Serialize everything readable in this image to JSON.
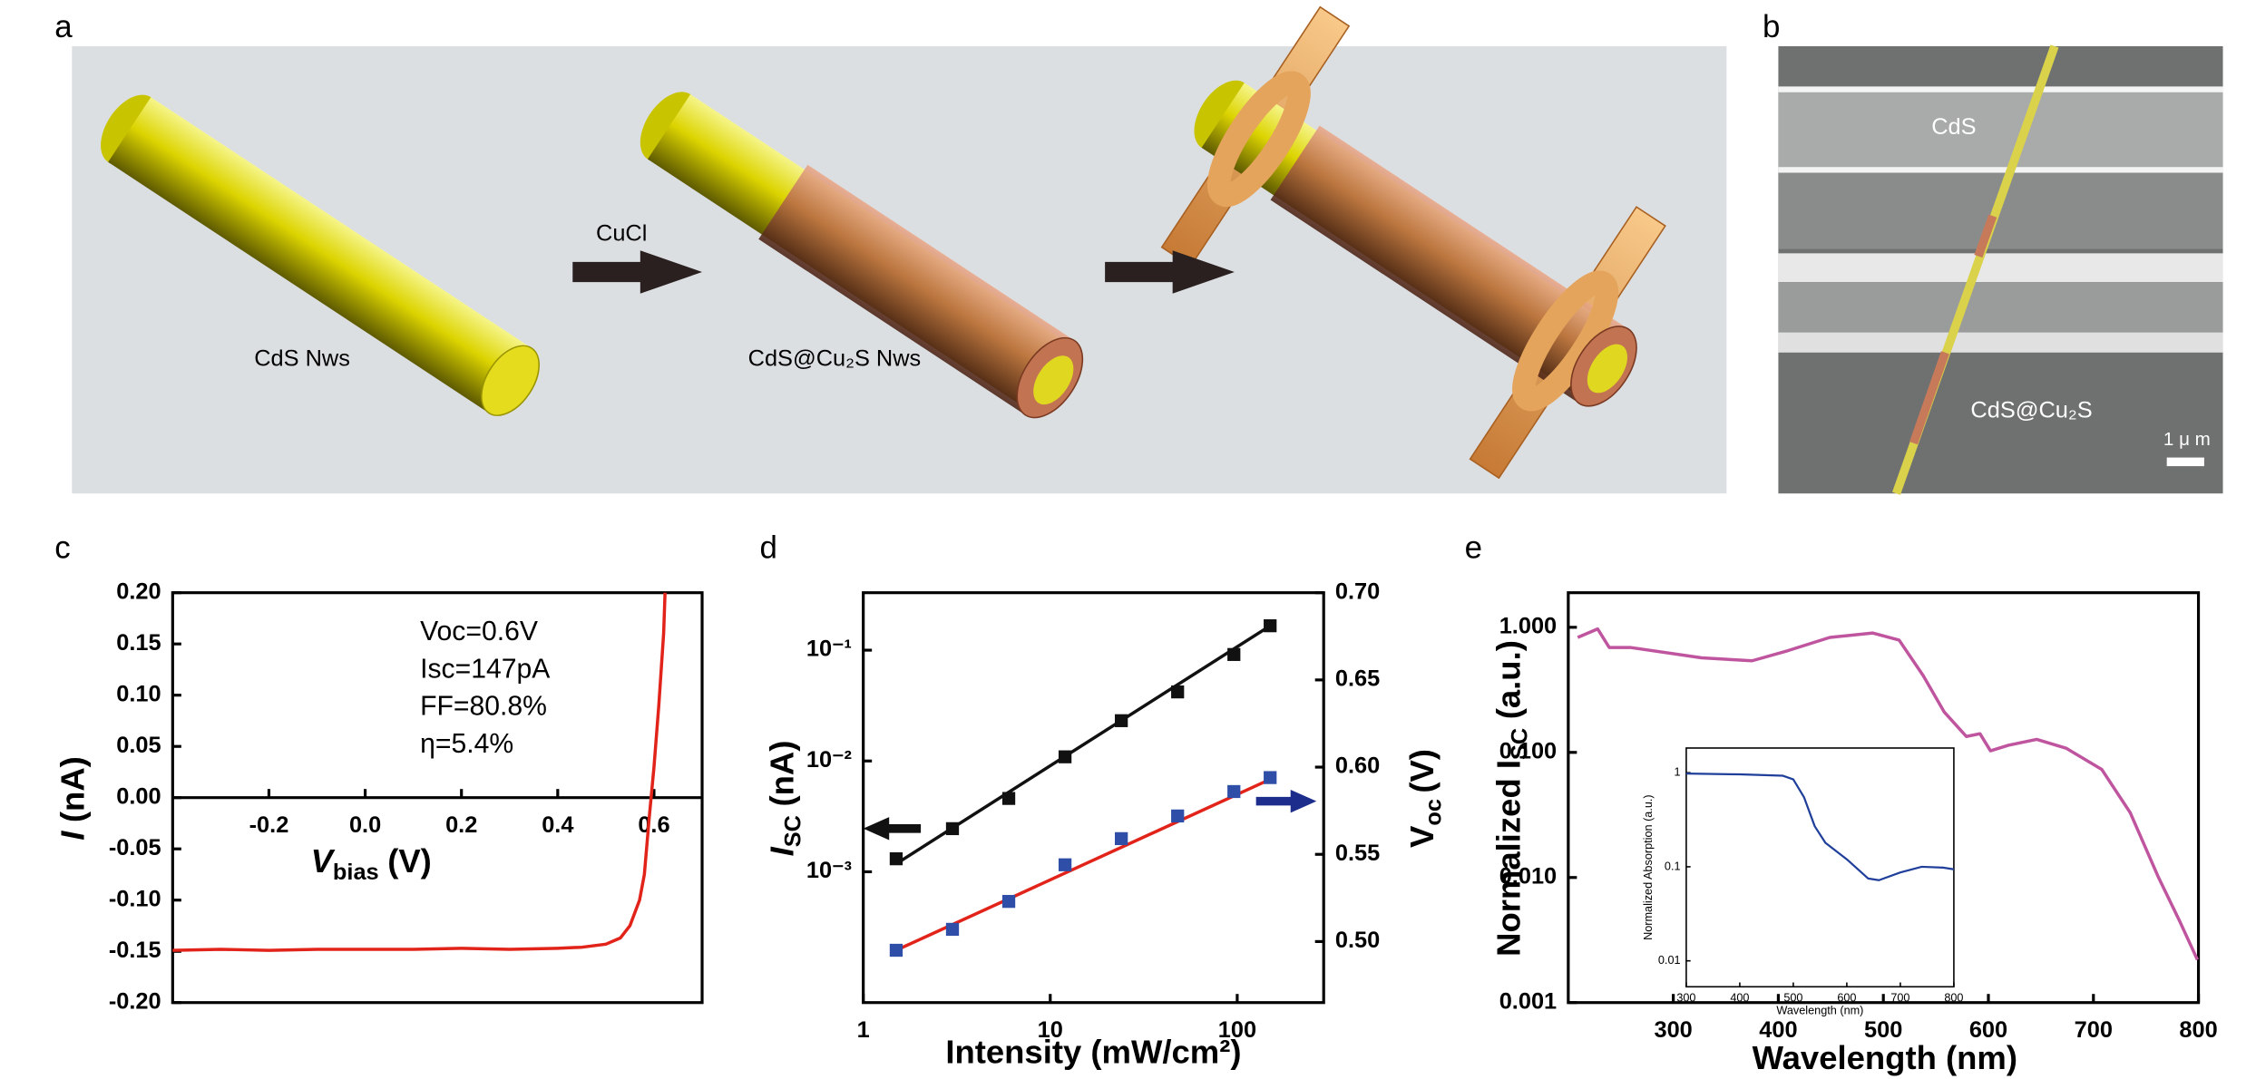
{
  "panel_labels": [
    "a",
    "b",
    "c",
    "d",
    "e"
  ],
  "figure_a": {
    "rod_labels": [
      "CdS Nws",
      "CdS@Cu₂S Nws"
    ],
    "arrow_label": "CuCl"
  },
  "figure_b": {
    "labels": [
      "CdS",
      "CdS@Cu₂S"
    ],
    "scale_bar": "1 μ m"
  },
  "chart_data": [
    {
      "type": "line",
      "ylabel": "I",
      "ylabel_unit": "(nA)",
      "xlabel": "V",
      "xlabel_sub": "bias",
      "xlabel_unit": "(V)",
      "annotations": [
        "Voc=0.6V",
        "Isc=147pA",
        "FF=80.8%",
        "η=5.4%"
      ],
      "x": [
        -0.4,
        -0.3,
        -0.2,
        -0.1,
        0,
        0.1,
        0.2,
        0.3,
        0.4,
        0.45,
        0.5,
        0.53,
        0.55,
        0.57,
        0.58,
        0.59,
        0.6,
        0.61,
        0.62,
        0.623
      ],
      "series": [
        {
          "color": "#e2231a",
          "values": [
            -0.149,
            -0.148,
            -0.149,
            -0.148,
            -0.148,
            -0.148,
            -0.147,
            -0.148,
            -0.147,
            -0.146,
            -0.143,
            -0.137,
            -0.125,
            -0.1,
            -0.075,
            -0.02,
            0.03,
            0.09,
            0.16,
            0.2
          ]
        }
      ],
      "xlim": [
        -0.4,
        0.7
      ],
      "xticks": [
        -0.2,
        {
          "value": 0,
          "label": "0.0"
        },
        0.2,
        0.4,
        0.6
      ],
      "ylim": [
        -0.2,
        0.2
      ],
      "yticks": [
        {
          "value": 0.2,
          "label": "0.20"
        },
        {
          "value": 0.15,
          "label": "0.15"
        },
        {
          "value": 0.1,
          "label": "0.10"
        },
        {
          "value": 0.05,
          "label": "0.05"
        },
        {
          "value": 0,
          "label": "0.00"
        },
        {
          "value": -0.05,
          "label": "-0.05"
        },
        {
          "value": -0.1,
          "label": "-0.10"
        },
        {
          "value": -0.15,
          "label": "-0.15"
        },
        {
          "value": -0.2,
          "label": "-0.20"
        }
      ]
    },
    {
      "type": "scatter",
      "xlabel": "Intensity (mW/cm²)",
      "ylabel": "I",
      "ylabel_sub": "SC",
      "ylabel_unit": "(nA)",
      "y2label": "V",
      "y2label_sub": "oc",
      "y2label_unit": "(V)",
      "xscale": "log",
      "yscale": "log",
      "x": [
        1.5,
        3,
        6,
        12,
        24,
        48,
        96,
        150
      ],
      "series": [
        {
          "color": "#111111",
          "values": [
            0.00131,
            0.00245,
            0.00459,
            0.0109,
            0.0231,
            0.042,
            0.0914,
            0.166
          ]
        },
        {
          "color": "#2f4ea8",
          "axis": "y2",
          "values": [
            0.495,
            0.507,
            0.523,
            0.544,
            0.559,
            0.572,
            0.586,
            0.594
          ]
        }
      ],
      "fits": [
        {
          "color": "#111111",
          "x": [
            1.5,
            150
          ],
          "values": [
            0.00118,
            0.166
          ]
        },
        {
          "color": "#e2231a",
          "axis": "y2",
          "x": [
            1.5,
            150
          ],
          "values": [
            0.495,
            0.593
          ]
        }
      ],
      "xlim": [
        1,
        290
      ],
      "xticks": [
        1,
        10,
        100
      ],
      "ylim": [
        6.6e-05,
        0.33
      ],
      "yticks": [
        {
          "value": 0.001,
          "label": "10⁻³"
        },
        {
          "value": 0.01,
          "label": "10⁻²"
        },
        {
          "value": 0.1,
          "label": "10⁻¹"
        }
      ],
      "y2lim": [
        0.465,
        0.7
      ],
      "y2ticks": [
        {
          "value": 0.5,
          "label": "0.50"
        },
        {
          "value": 0.55,
          "label": "0.55"
        },
        {
          "value": 0.6,
          "label": "0.60"
        },
        {
          "value": 0.65,
          "label": "0.65"
        },
        {
          "value": 0.7,
          "label": "0.70"
        }
      ]
    },
    {
      "type": "line",
      "xlabel": "Wavelength (nm)",
      "ylabel": "Normalized I",
      "ylabel_sub": "SC",
      "ylabel_unit": "(a.u.)",
      "yscale": "log",
      "x": [
        209,
        228,
        239,
        259,
        327,
        375,
        409,
        449,
        490,
        515,
        538,
        558,
        579,
        592,
        602,
        619,
        646,
        674,
        708,
        735,
        762,
        782,
        799
      ],
      "series": [
        {
          "color": "#c0559f",
          "values": [
            0.83,
            0.97,
            0.69,
            0.69,
            0.57,
            0.54,
            0.65,
            0.83,
            0.9,
            0.79,
            0.41,
            0.21,
            0.134,
            0.141,
            0.103,
            0.114,
            0.127,
            0.108,
            0.073,
            0.033,
            0.01,
            0.0045,
            0.0022
          ]
        }
      ],
      "xlim": [
        200,
        800
      ],
      "xticks": [
        300,
        400,
        500,
        600,
        700,
        800
      ],
      "ylim": [
        0.001,
        1.89
      ],
      "yticks": [
        {
          "value": 1,
          "label": "1.000"
        },
        {
          "value": 0.1,
          "label": "0.100"
        },
        {
          "value": 0.01,
          "label": "0.010"
        },
        {
          "value": 0.001,
          "label": "0.001"
        }
      ]
    },
    {
      "type": "line",
      "xlabel": "Wavelength (nm)",
      "ylabel": "Normalized Absorption (a.u.)",
      "yscale": "log",
      "x": [
        300,
        400,
        480,
        500,
        520,
        540,
        560,
        600,
        640,
        660,
        700,
        740,
        780,
        800
      ],
      "series": [
        {
          "color": "#1f3f9a",
          "values": [
            0.98,
            0.96,
            0.93,
            0.85,
            0.55,
            0.27,
            0.18,
            0.12,
            0.075,
            0.072,
            0.087,
            0.1,
            0.098,
            0.094
          ]
        }
      ],
      "xlim": [
        300,
        800
      ],
      "xticks": [
        300,
        400,
        500,
        600,
        700,
        800
      ],
      "ylim": [
        0.0053,
        1.83
      ],
      "yticks": [
        1,
        0.1,
        0.01
      ]
    }
  ]
}
